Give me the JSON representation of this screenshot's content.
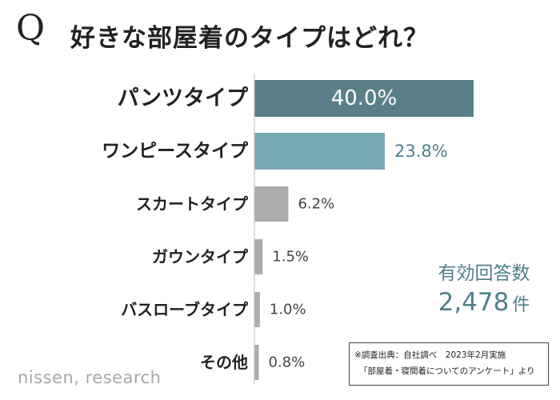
{
  "title": {
    "q": "Q",
    "text": "好きな部屋着のタイプはどれ？"
  },
  "chart_data": {
    "type": "bar",
    "orientation": "horizontal",
    "categories": [
      "パンツタイプ",
      "ワンピースタイプ",
      "スカートタイプ",
      "ガウンタイプ",
      "バスローブタイプ",
      "その他"
    ],
    "values": [
      40.0,
      23.8,
      6.2,
      1.5,
      1.0,
      0.8
    ],
    "value_labels": [
      "40.0%",
      "23.8%",
      "6.2%",
      "1.5%",
      "1.0%",
      "0.8%"
    ],
    "xlim": [
      0,
      40
    ],
    "grid": false,
    "legend": "none"
  },
  "colors": {
    "top1": "#5b7f88",
    "top2": "#78a8b4",
    "other": "#acacac",
    "accent_text": "#4f7f8b"
  },
  "total": {
    "label": "有効回答数",
    "value": "2,478",
    "unit": "件"
  },
  "source": {
    "line1": "※調査出典：自社調べ　2023年2月実施",
    "line2": "「部屋着・寝間着についてのアンケート」より"
  },
  "logo": {
    "text": "nissen, research"
  }
}
